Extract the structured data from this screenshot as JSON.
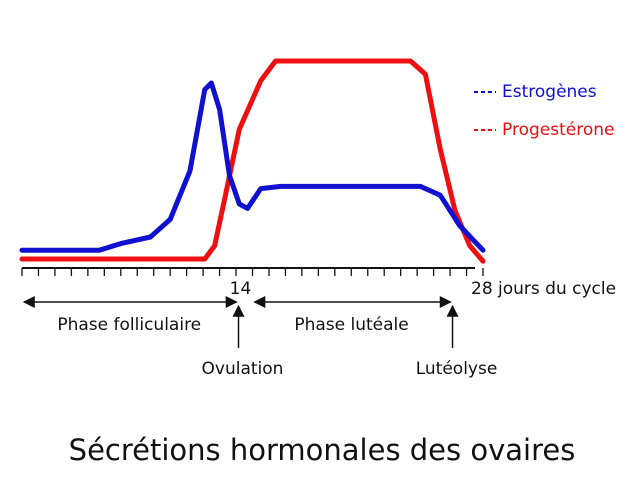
{
  "chart_data": {
    "type": "line",
    "title": "Sécrétions hormonales des ovaires",
    "xlim": [
      0,
      28
    ],
    "ylim": [
      0,
      100
    ],
    "xticks": [
      14,
      {
        "value": 28,
        "label": "28 jours du cycle"
      }
    ],
    "xminorticks": [
      0,
      1,
      2,
      3,
      4,
      5,
      6,
      7,
      8,
      9,
      10,
      11,
      12,
      13,
      14,
      15,
      16,
      17,
      18,
      19,
      20,
      21,
      22,
      23,
      24,
      25,
      26,
      27,
      28
    ],
    "legend": "top-right",
    "series": [
      {
        "name": "Estrogènes",
        "color": "#1010d0",
        "x": [
          0,
          4.7,
          6,
          7.8,
          9,
          10.2,
          11.1,
          11.5,
          12,
          12.6,
          13.2,
          13.7,
          14.5,
          15.7,
          24.2,
          25.4,
          26.6,
          28
        ],
        "values": [
          9,
          9,
          12,
          15,
          23,
          45,
          82,
          85,
          73,
          43,
          30,
          28,
          37,
          38,
          38,
          34,
          20,
          9
        ]
      },
      {
        "name": "Progestérone",
        "color": "#ee1010",
        "x": [
          0,
          11.1,
          11.7,
          12.3,
          13.2,
          14.5,
          15.4,
          23.6,
          24.5,
          25.4,
          26.3,
          27.2,
          28
        ],
        "values": [
          5,
          5,
          11,
          32,
          64,
          86,
          95,
          95,
          89,
          55,
          27,
          11,
          4
        ]
      }
    ],
    "phases": [
      {
        "label": "Phase folliculaire",
        "start": 0,
        "end": 14
      },
      {
        "label": "Phase lutéale",
        "start": 14,
        "end": 27
      }
    ],
    "markers": [
      {
        "label": "Ovulation",
        "x": 14
      },
      {
        "label": "Lutéolyse",
        "x": 27
      }
    ]
  }
}
